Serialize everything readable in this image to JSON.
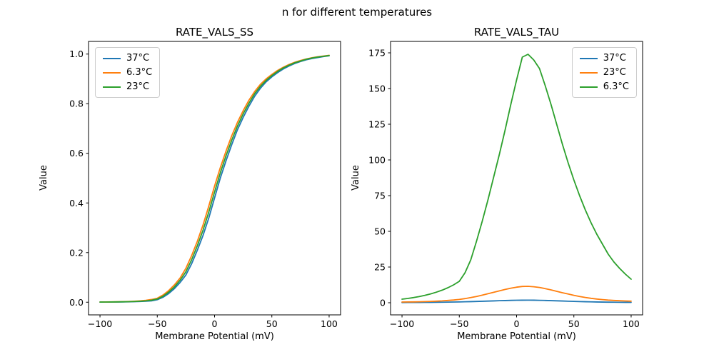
{
  "figure": {
    "title": "n for different temperatures",
    "background": "#ffffff",
    "axis_color": "#000000"
  },
  "colors": {
    "blue": "#1f77b4",
    "orange": "#ff7f0e",
    "green": "#2ca02c"
  },
  "chart_data": [
    {
      "type": "line",
      "title": "RATE_VALS_SS",
      "xlabel": "Membrane Potential (mV)",
      "ylabel": "Value",
      "grid": false,
      "legend_position": "upper-left",
      "xlim": [
        -110,
        110
      ],
      "ylim": [
        -0.051,
        1.051
      ],
      "xticks": [
        -100,
        -50,
        0,
        50,
        100
      ],
      "xtick_labels": [
        "−100",
        "−50",
        "0",
        "50",
        "100"
      ],
      "yticks": [
        0.0,
        0.2,
        0.4,
        0.6,
        0.8,
        1.0
      ],
      "ytick_labels": [
        "0.0",
        "0.2",
        "0.4",
        "0.6",
        "0.8",
        "1.0"
      ],
      "x": [
        -100,
        -95,
        -90,
        -85,
        -80,
        -75,
        -70,
        -65,
        -60,
        -55,
        -50,
        -45,
        -40,
        -35,
        -30,
        -25,
        -20,
        -15,
        -10,
        -5,
        0,
        5,
        10,
        15,
        20,
        25,
        30,
        35,
        40,
        45,
        50,
        55,
        60,
        65,
        70,
        75,
        80,
        85,
        90,
        95,
        100
      ],
      "series": [
        {
          "name": "37°C",
          "color": "#1f77b4",
          "values": [
            0.0005,
            0.0006,
            0.0008,
            0.001,
            0.0013,
            0.0017,
            0.0022,
            0.003,
            0.004,
            0.0055,
            0.01,
            0.02,
            0.035,
            0.055,
            0.08,
            0.11,
            0.155,
            0.21,
            0.27,
            0.34,
            0.42,
            0.5,
            0.57,
            0.635,
            0.695,
            0.745,
            0.79,
            0.83,
            0.862,
            0.888,
            0.908,
            0.925,
            0.94,
            0.952,
            0.962,
            0.97,
            0.977,
            0.982,
            0.986,
            0.99,
            0.993
          ]
        },
        {
          "name": "6.3°C",
          "color": "#ff7f0e",
          "values": [
            0.0008,
            0.001,
            0.0013,
            0.0017,
            0.0022,
            0.003,
            0.004,
            0.0055,
            0.0075,
            0.011,
            0.016,
            0.029,
            0.047,
            0.07,
            0.098,
            0.137,
            0.188,
            0.246,
            0.312,
            0.388,
            0.468,
            0.542,
            0.609,
            0.671,
            0.725,
            0.772,
            0.814,
            0.849,
            0.878,
            0.9,
            0.918,
            0.934,
            0.947,
            0.958,
            0.967,
            0.974,
            0.98,
            0.985,
            0.989,
            0.992,
            0.995
          ]
        },
        {
          "name": "23°C",
          "color": "#2ca02c",
          "values": [
            0.0006,
            0.0008,
            0.001,
            0.0013,
            0.0017,
            0.0022,
            0.003,
            0.004,
            0.0055,
            0.008,
            0.013,
            0.024,
            0.041,
            0.062,
            0.089,
            0.123,
            0.171,
            0.228,
            0.291,
            0.364,
            0.444,
            0.521,
            0.59,
            0.653,
            0.71,
            0.759,
            0.802,
            0.84,
            0.87,
            0.894,
            0.913,
            0.93,
            0.944,
            0.955,
            0.965,
            0.972,
            0.979,
            0.984,
            0.988,
            0.991,
            0.994
          ]
        }
      ]
    },
    {
      "type": "line",
      "title": "RATE_VALS_TAU",
      "xlabel": "Membrane Potential (mV)",
      "ylabel": "Value",
      "grid": false,
      "legend_position": "upper-right",
      "xlim": [
        -110,
        110
      ],
      "ylim": [
        -8.5,
        183
      ],
      "xticks": [
        -100,
        -50,
        0,
        50,
        100
      ],
      "xtick_labels": [
        "−100",
        "−50",
        "0",
        "50",
        "100"
      ],
      "yticks": [
        0,
        25,
        50,
        75,
        100,
        125,
        150,
        175
      ],
      "ytick_labels": [
        "0",
        "25",
        "50",
        "75",
        "100",
        "125",
        "150",
        "175"
      ],
      "x": [
        -100,
        -95,
        -90,
        -85,
        -80,
        -75,
        -70,
        -65,
        -60,
        -55,
        -50,
        -45,
        -40,
        -35,
        -30,
        -25,
        -20,
        -15,
        -10,
        -5,
        0,
        5,
        10,
        15,
        20,
        25,
        30,
        35,
        40,
        45,
        50,
        55,
        60,
        65,
        70,
        75,
        80,
        85,
        90,
        95,
        100
      ],
      "series": [
        {
          "name": "37°C",
          "color": "#1f77b4",
          "values": [
            0.15,
            0.17,
            0.19,
            0.21,
            0.24,
            0.28,
            0.32,
            0.37,
            0.43,
            0.5,
            0.58,
            0.68,
            0.78,
            0.9,
            1.02,
            1.15,
            1.28,
            1.42,
            1.54,
            1.65,
            1.74,
            1.79,
            1.8,
            1.77,
            1.7,
            1.6,
            1.48,
            1.35,
            1.21,
            1.08,
            0.95,
            0.83,
            0.72,
            0.62,
            0.54,
            0.47,
            0.41,
            0.36,
            0.32,
            0.28,
            0.25
          ]
        },
        {
          "name": "23°C",
          "color": "#ff7f0e",
          "values": [
            0.5,
            0.55,
            0.6,
            0.7,
            0.8,
            0.95,
            1.1,
            1.3,
            1.6,
            1.9,
            2.3,
            2.9,
            3.6,
            4.4,
            5.3,
            6.3,
            7.3,
            8.3,
            9.3,
            10.2,
            10.9,
            11.4,
            11.5,
            11.2,
            10.7,
            9.9,
            9.0,
            8.0,
            7.0,
            6.1,
            5.2,
            4.4,
            3.7,
            3.1,
            2.6,
            2.2,
            1.85,
            1.6,
            1.4,
            1.25,
            1.1
          ]
        },
        {
          "name": "6.3°C",
          "color": "#2ca02c",
          "values": [
            2.5,
            3,
            3.6,
            4.3,
            5.2,
            6.2,
            7.4,
            8.8,
            10.5,
            12.5,
            15,
            21,
            30,
            43,
            57,
            72,
            88,
            104,
            121,
            139,
            156,
            172,
            174,
            170,
            164,
            152,
            139,
            125,
            111,
            98,
            86,
            75,
            65,
            56,
            48,
            41,
            34,
            28.5,
            24,
            20,
            16.5
          ]
        }
      ]
    }
  ]
}
